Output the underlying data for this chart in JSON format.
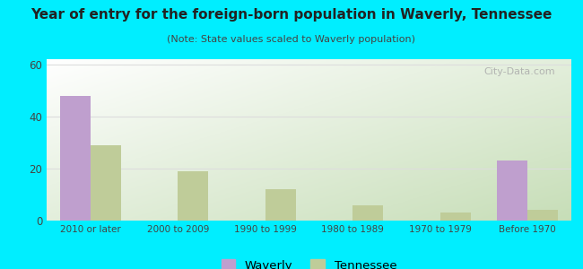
{
  "title": "Year of entry for the foreign-born population in Waverly, Tennessee",
  "subtitle": "(Note: State values scaled to Waverly population)",
  "categories": [
    "2010 or later",
    "2000 to 2009",
    "1990 to 1999",
    "1980 to 1989",
    "1970 to 1979",
    "Before 1970"
  ],
  "waverly_values": [
    48,
    0,
    0,
    0,
    0,
    23
  ],
  "tennessee_values": [
    29,
    19,
    12,
    6,
    3,
    4
  ],
  "waverly_color": "#bf9fce",
  "tennessee_color": "#bfcc99",
  "background_outer": "#00eeff",
  "ylim": [
    0,
    62
  ],
  "yticks": [
    0,
    20,
    40,
    60
  ],
  "bar_width": 0.35,
  "watermark": "City-Data.com",
  "legend_waverly": "Waverly",
  "legend_tennessee": "Tennessee",
  "title_color": "#222222",
  "subtitle_color": "#444444",
  "tick_color": "#444444",
  "grid_color": "#dddddd"
}
